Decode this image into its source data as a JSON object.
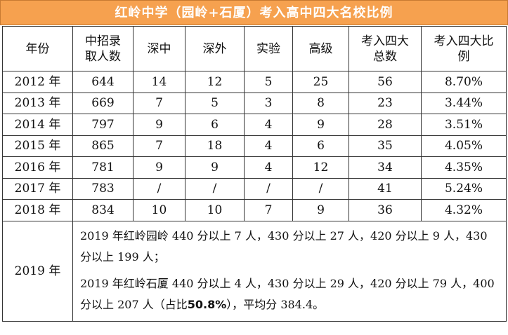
{
  "title": "红岭中学（园岭+石厦）考入高中四大名校比例",
  "headers": [
    "年份",
    "中招录取人数",
    "深中",
    "深外",
    "实验",
    "高级",
    "考入四大总数",
    "考入四大比例"
  ],
  "header_lines": [
    [
      "年份"
    ],
    [
      "中招录",
      "取人数"
    ],
    [
      "深中"
    ],
    [
      "深外"
    ],
    [
      "实验"
    ],
    [
      "高级"
    ],
    [
      "考入四大",
      "总数"
    ],
    [
      "考入四大比",
      "例"
    ]
  ],
  "rows": [
    [
      "2012 年",
      "644",
      "14",
      "12",
      "5",
      "25",
      "56",
      "8.70%"
    ],
    [
      "2013 年",
      "669",
      "7",
      "5",
      "3",
      "8",
      "23",
      "3.44%"
    ],
    [
      "2014 年",
      "797",
      "9",
      "6",
      "4",
      "9",
      "28",
      "3.51%"
    ],
    [
      "2015 年",
      "865",
      "7",
      "18",
      "4",
      "6",
      "35",
      "4.05%"
    ],
    [
      "2016 年",
      "781",
      "9",
      "9",
      "4",
      "12",
      "34",
      "4.35%"
    ],
    [
      "2017 年",
      "783",
      "/",
      "/",
      "/",
      "/",
      "41",
      "5.24%"
    ],
    [
      "2018 年",
      "834",
      "10",
      "10",
      "7",
      "9",
      "36",
      "4.32%"
    ]
  ],
  "note": {
    "year": "2019 年",
    "line1": "2019 年红岭园岭 440 分以上 7 人，430 分以上 27 人，420 分以上 9 人，430 分以上 199 人；",
    "line2_before": "2019 年红岭石厦 440 分以上 4 人，430 分以上 29 人，420 分以上 79 人，400 分以上 207 人（占比",
    "line2_highlight": "50.8%",
    "line2_after": "），平均分 384.4。"
  }
}
